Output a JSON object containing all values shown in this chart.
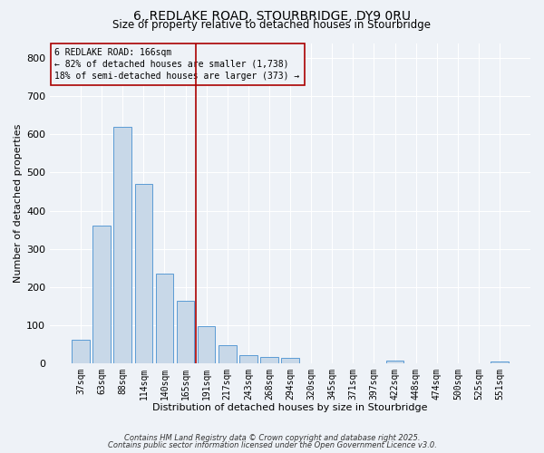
{
  "title_line1": "6, REDLAKE ROAD, STOURBRIDGE, DY9 0RU",
  "title_line2": "Size of property relative to detached houses in Stourbridge",
  "xlabel": "Distribution of detached houses by size in Stourbridge",
  "ylabel": "Number of detached properties",
  "categories": [
    "37sqm",
    "63sqm",
    "88sqm",
    "114sqm",
    "140sqm",
    "165sqm",
    "191sqm",
    "217sqm",
    "243sqm",
    "268sqm",
    "294sqm",
    "320sqm",
    "345sqm",
    "371sqm",
    "397sqm",
    "422sqm",
    "448sqm",
    "474sqm",
    "500sqm",
    "525sqm",
    "551sqm"
  ],
  "values": [
    60,
    360,
    620,
    470,
    235,
    163,
    98,
    46,
    20,
    17,
    13,
    0,
    0,
    0,
    0,
    6,
    0,
    0,
    0,
    0,
    5
  ],
  "bar_color": "#c8d8e8",
  "bar_edge_color": "#5b9bd5",
  "vline_x_index": 5,
  "vline_color": "#aa0000",
  "ylim": [
    0,
    840
  ],
  "yticks": [
    0,
    100,
    200,
    300,
    400,
    500,
    600,
    700,
    800
  ],
  "annotation_text_line1": "6 REDLAKE ROAD: 166sqm",
  "annotation_text_line2": "← 82% of detached houses are smaller (1,738)",
  "annotation_text_line3": "18% of semi-detached houses are larger (373) →",
  "annotation_box_color": "#aa0000",
  "bg_color": "#eef2f7",
  "grid_color": "#ffffff",
  "footer_line1": "Contains HM Land Registry data © Crown copyright and database right 2025.",
  "footer_line2": "Contains public sector information licensed under the Open Government Licence v3.0."
}
